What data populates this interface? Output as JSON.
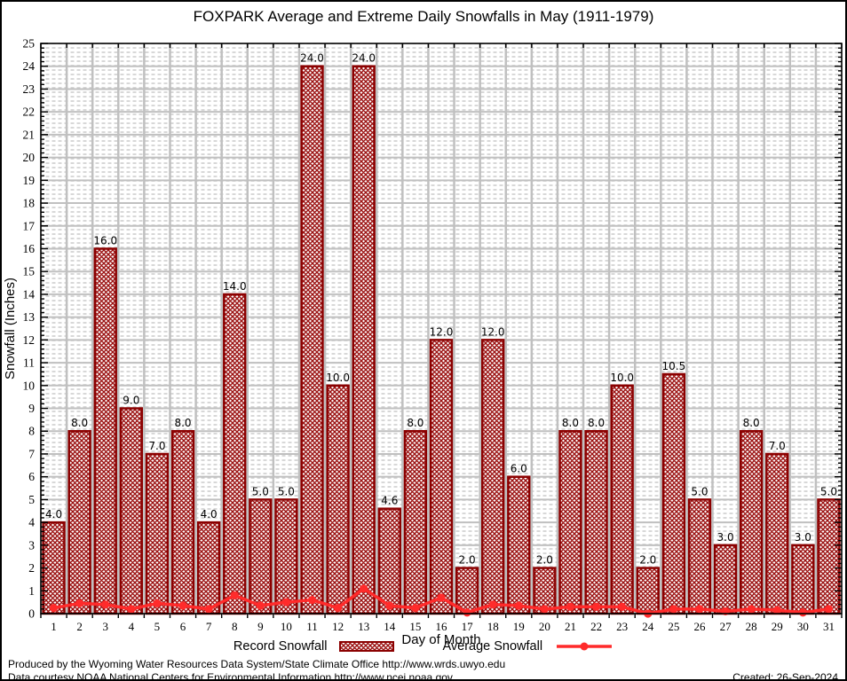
{
  "title": "FOXPARK Average and Extreme Daily Snowfalls in May (1911-1979)",
  "chart_data": {
    "type": "bar",
    "title": "FOXPARK Average and Extreme Daily Snowfalls in May (1911-1979)",
    "xlabel": "Day of Month",
    "ylabel": "Snowfall (Inches)",
    "ylim": [
      0,
      25
    ],
    "ytick_step": 1,
    "grid": true,
    "legend_position": "bottom",
    "days": [
      1,
      2,
      3,
      4,
      5,
      6,
      7,
      8,
      9,
      10,
      11,
      12,
      13,
      14,
      15,
      16,
      17,
      18,
      19,
      20,
      21,
      22,
      23,
      24,
      25,
      26,
      27,
      28,
      29,
      30,
      31
    ],
    "series": [
      {
        "name": "Record Snowfall",
        "type": "bar",
        "values": [
          4.0,
          8.0,
          16.0,
          9.0,
          7.0,
          8.0,
          4.0,
          14.0,
          5.0,
          5.0,
          24.0,
          10.0,
          24.0,
          4.6,
          8.0,
          12.0,
          2.0,
          12.0,
          6.0,
          2.0,
          8.0,
          8.0,
          10.0,
          2.0,
          10.5,
          5.0,
          3.0,
          8.0,
          7.0,
          3.0,
          5.0
        ]
      },
      {
        "name": "Average Snowfall",
        "type": "line",
        "values": [
          0.25,
          0.45,
          0.4,
          0.2,
          0.45,
          0.35,
          0.2,
          0.8,
          0.35,
          0.5,
          0.6,
          0.25,
          1.1,
          0.35,
          0.25,
          0.7,
          0.05,
          0.4,
          0.35,
          0.2,
          0.3,
          0.3,
          0.3,
          0.0,
          0.2,
          0.2,
          0.1,
          0.2,
          0.15,
          0.05,
          0.2
        ]
      }
    ],
    "bar_labels": [
      "4.0",
      "8.0",
      "16.0",
      "9.0",
      "7.0",
      "8.0",
      "4.0",
      "14.0",
      "5.0",
      "5.0",
      "24.0",
      "10.0",
      "24.0",
      "4.6",
      "8.0",
      "12.0",
      "2.0",
      "12.0",
      "6.0",
      "2.0",
      "8.0",
      "8.0",
      "10.0",
      "2.0",
      "10.5",
      "5.0",
      "3.0",
      "8.0",
      "7.0",
      "3.0",
      "5.0"
    ]
  },
  "legend": {
    "record_label": "Record Snowfall",
    "average_label": "Average Snowfall"
  },
  "footer": {
    "line1": "Produced by the Wyoming Water Resources Data System/State Climate Office http://www.wrds.uwyo.edu",
    "line2": "Data courtesy NOAA National Centers for Environmental Information http://www.ncei.noaa.gov",
    "created": "Created: 26-Sep-2024"
  },
  "colors": {
    "bar_edge": "#8b0000",
    "bar_hatch": "#9b1111",
    "line": "#ff2b2b",
    "grid": "#c0c0c0",
    "stipple": "#cfcfcf",
    "axis": "#000000"
  }
}
